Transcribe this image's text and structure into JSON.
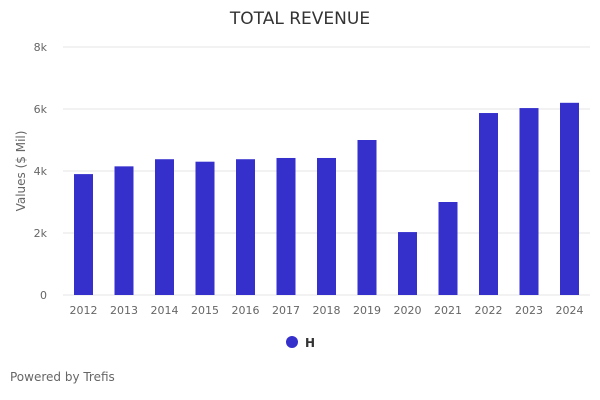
{
  "chart_data": {
    "type": "bar",
    "title": "TOTAL REVENUE",
    "xlabel": "",
    "ylabel": "Values ($ Mil)",
    "categories": [
      "2012",
      "2013",
      "2014",
      "2015",
      "2016",
      "2017",
      "2018",
      "2019",
      "2020",
      "2021",
      "2022",
      "2023",
      "2024"
    ],
    "series": [
      {
        "name": "H",
        "values": [
          3900,
          4150,
          4380,
          4300,
          4380,
          4420,
          4420,
          5000,
          2030,
          3000,
          5870,
          6030,
          6200
        ]
      }
    ],
    "ylim": [
      0,
      8000
    ],
    "yticks": [
      0,
      2000,
      4000,
      6000,
      8000
    ],
    "ytick_labels": [
      "0",
      "2k",
      "4k",
      "6k",
      "8k"
    ],
    "grid": true,
    "legend_position": "bottom-center"
  },
  "colors": {
    "bar": "#3530cc",
    "grid": "#e6e6e6",
    "axis_text": "#666666",
    "title": "#333333"
  },
  "footer": {
    "text": "Powered by Trefis"
  }
}
